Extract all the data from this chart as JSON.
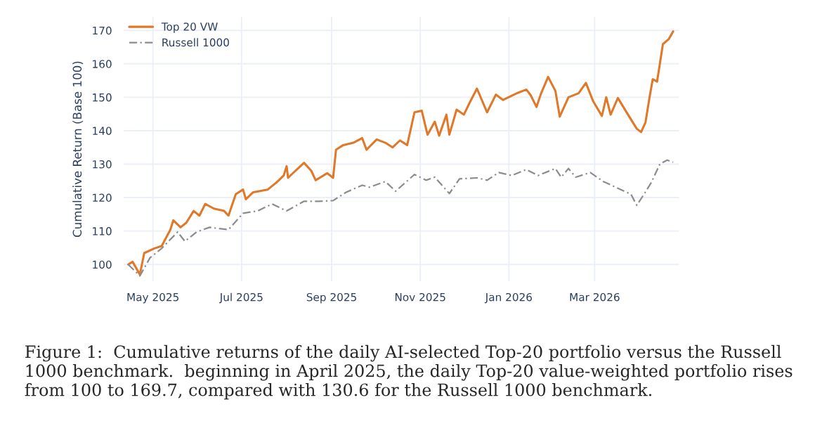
{
  "chart_data": {
    "type": "line",
    "ylabel": "Cumulative Return (Base 100)",
    "xlim": [
      "2025-04-11",
      "2026-04-28"
    ],
    "ylim": [
      95,
      174
    ],
    "xticks": [
      {
        "value": "2025-05-01",
        "label": "May 2025"
      },
      {
        "value": "2025-07-01",
        "label": "Jul 2025"
      },
      {
        "value": "2025-09-01",
        "label": "Sep 2025"
      },
      {
        "value": "2025-11-01",
        "label": "Nov 2025"
      },
      {
        "value": "2026-01-01",
        "label": "Jan 2026"
      },
      {
        "value": "2026-03-01",
        "label": "Mar 2026"
      }
    ],
    "yticks": [
      100,
      110,
      120,
      130,
      140,
      150,
      160,
      170
    ],
    "grid": true,
    "legend": "top left",
    "marker": "none",
    "series": [
      {
        "name": "Top 20 VW",
        "color": "#e0782a",
        "line_style": "solid",
        "x": [
          "2025-04-14",
          "2025-04-17",
          "2025-04-22",
          "2025-04-25",
          "2025-05-02",
          "2025-05-07",
          "2025-05-13",
          "2025-05-15",
          "2025-05-20",
          "2025-05-24",
          "2025-05-29",
          "2025-06-02",
          "2025-06-06",
          "2025-06-12",
          "2025-06-19",
          "2025-06-22",
          "2025-06-27",
          "2025-07-02",
          "2025-07-04",
          "2025-07-09",
          "2025-07-19",
          "2025-07-25",
          "2025-07-30",
          "2025-08-01",
          "2025-08-02",
          "2025-08-07",
          "2025-08-13",
          "2025-08-18",
          "2025-08-21",
          "2025-08-29",
          "2025-09-02",
          "2025-09-04",
          "2025-09-09",
          "2025-09-16",
          "2025-09-22",
          "2025-09-25",
          "2025-10-02",
          "2025-10-08",
          "2025-10-13",
          "2025-10-18",
          "2025-10-23",
          "2025-10-28",
          "2025-11-02",
          "2025-11-06",
          "2025-11-11",
          "2025-11-14",
          "2025-11-19",
          "2025-11-21",
          "2025-11-26",
          "2025-12-01",
          "2025-12-05",
          "2025-12-10",
          "2025-12-17",
          "2025-12-23",
          "2025-12-28",
          "2026-01-07",
          "2026-01-13",
          "2026-01-16",
          "2026-01-20",
          "2026-01-23",
          "2026-01-28",
          "2026-02-02",
          "2026-02-05",
          "2026-02-11",
          "2026-02-18",
          "2026-02-23",
          "2026-02-28",
          "2026-03-06",
          "2026-03-09",
          "2026-03-12",
          "2026-03-17",
          "2026-03-24",
          "2026-03-30",
          "2026-04-02",
          "2026-04-05",
          "2026-04-08",
          "2026-04-10",
          "2026-04-13",
          "2026-04-17",
          "2026-04-21",
          "2026-04-24"
        ],
        "values": [
          100,
          100.8,
          97,
          103.4,
          104.8,
          105.5,
          110.4,
          113.2,
          111.1,
          112.5,
          116,
          114.6,
          118.1,
          116.7,
          116,
          114.6,
          121,
          122.4,
          119.5,
          121.6,
          122.4,
          124.5,
          126.6,
          129.4,
          125.9,
          128,
          130.4,
          128,
          125.2,
          127.3,
          125.9,
          134.3,
          135.7,
          136.4,
          137.8,
          134.3,
          137.4,
          136.4,
          135,
          137.1,
          135.7,
          145.5,
          146,
          138.8,
          142.7,
          138.5,
          144.8,
          138.8,
          146.3,
          144.8,
          148.4,
          152.6,
          145.5,
          150.8,
          149.2,
          151.3,
          152.3,
          150.6,
          147.1,
          151,
          156.1,
          151.9,
          144.2,
          150,
          151.2,
          154.3,
          148.8,
          144.4,
          150,
          144.8,
          149.8,
          144.8,
          140.6,
          139.6,
          142.5,
          150.5,
          155.4,
          154.7,
          165.9,
          167.4,
          169.7
        ]
      },
      {
        "name": "Russell 1000",
        "color": "#8c8c8c",
        "line_style": "dashed",
        "x": [
          "2025-04-14",
          "2025-04-22",
          "2025-04-29",
          "2025-05-07",
          "2025-05-18",
          "2025-05-23",
          "2025-05-31",
          "2025-06-09",
          "2025-06-22",
          "2025-07-02",
          "2025-07-12",
          "2025-07-22",
          "2025-08-01",
          "2025-08-13",
          "2025-08-23",
          "2025-09-02",
          "2025-09-11",
          "2025-09-22",
          "2025-09-27",
          "2025-10-08",
          "2025-10-15",
          "2025-10-28",
          "2025-11-05",
          "2025-11-11",
          "2025-11-21",
          "2025-11-28",
          "2025-12-10",
          "2025-12-17",
          "2025-12-25",
          "2026-01-03",
          "2026-01-13",
          "2026-01-21",
          "2026-02-02",
          "2026-02-06",
          "2026-02-11",
          "2026-02-16",
          "2026-02-26",
          "2026-03-07",
          "2026-03-19",
          "2026-03-26",
          "2026-03-30",
          "2026-04-04",
          "2026-04-09",
          "2026-04-15",
          "2026-04-20",
          "2026-04-24"
        ],
        "values": [
          100,
          96.6,
          102,
          104.8,
          109.7,
          106.9,
          109.7,
          111.1,
          110.4,
          115.3,
          116,
          118.1,
          116,
          118.9,
          118.9,
          119.1,
          121.6,
          123.7,
          123.1,
          124.8,
          121.9,
          126.9,
          125.2,
          126.1,
          121.2,
          125.6,
          125.9,
          125.2,
          127.5,
          126.6,
          128.4,
          126.6,
          128.7,
          126.1,
          128.7,
          126.1,
          127.5,
          124.8,
          122.4,
          121,
          117.7,
          121,
          124.5,
          130.1,
          131.2,
          130.6
        ]
      }
    ],
    "annotations": [
      "Figure 1:  Cumulative returns of the daily AI-selected Top-20 portfolio versus the Russell 1000 benchmark.  beginning in April 2025, the daily Top-20 value-weighted portfolio rises from 100 to 169.7, compared with 130.6 for the Russell 1000 benchmark."
    ]
  }
}
